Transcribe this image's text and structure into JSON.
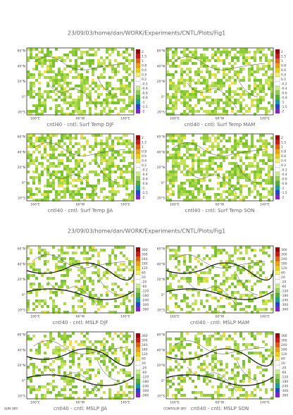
{
  "figures": [
    {
      "title": "23/09/03/home/dan/WORK/Experiments/CNTL/Plots/Fig1",
      "panels": [
        {
          "caption": "cntl40 - cntl: Surf Temp DJF",
          "lat_labels": [
            "60°N",
            "40°N",
            "20°N",
            "0°",
            "20°S"
          ],
          "lon_labels": [
            "160°E",
            "60°W",
            "140°E"
          ],
          "colorbar_labels": [
            "2",
            "1.5",
            "1",
            "0.8",
            "0.6",
            "0.4",
            "0.2",
            "-0.2",
            "-0.4",
            "-0.6",
            "-0.8",
            "-1",
            "-1.5",
            "-2"
          ]
        },
        {
          "caption": "cntl40 - cntl: Surf Temp MAM",
          "lat_labels": [
            "60°N",
            "40°N",
            "20°N",
            "0°",
            "20°S"
          ],
          "lon_labels": [
            "160°E",
            "60°W",
            "140°E"
          ],
          "colorbar_labels": [
            "2",
            "1.5",
            "1",
            "0.8",
            "0.6",
            "0.4",
            "0.2",
            "-0.2",
            "-0.4",
            "-0.6",
            "-0.8",
            "-1",
            "-1.5",
            "-2"
          ]
        },
        {
          "caption": "cntl40 - cntl: Surf Temp JJA",
          "lat_labels": [
            "60°N",
            "40°N",
            "20°N",
            "0°",
            "20°S"
          ],
          "lon_labels": [
            "160°E",
            "60°W",
            "140°E"
          ],
          "colorbar_labels": [
            "2",
            "1.5",
            "1",
            "0.8",
            "0.6",
            "0.4",
            "0.2",
            "-0.2",
            "-0.4",
            "-0.6",
            "-0.8",
            "-1",
            "-1.5",
            "-2"
          ]
        },
        {
          "caption": "cntl40 - cntl: Surf Temp SON",
          "lat_labels": [
            "60°N",
            "40°N",
            "20°N",
            "0°",
            "20°S"
          ],
          "lon_labels": [
            "160°E",
            "60°W",
            "140°E"
          ],
          "colorbar_labels": [
            "2",
            "1.5",
            "1",
            "0.8",
            "0.6",
            "0.4",
            "0.2",
            "-0.2",
            "-0.4",
            "-0.6",
            "-0.8",
            "-1",
            "-1.5",
            "-2"
          ]
        }
      ]
    },
    {
      "title": "23/09/03/home/dan/WORK/Experiments/CNTL/Plots/Fig1",
      "panels": [
        {
          "caption": "cntl40 - cntl: MSLP DJF",
          "lat_labels": [
            "60°N",
            "40°N",
            "20°N",
            "0°",
            "20°S"
          ],
          "lon_labels": [
            "160°E",
            "60°W",
            "140°E"
          ],
          "colorbar_labels": [
            "360",
            "300",
            "240",
            "180",
            "120",
            "60",
            "20",
            "-20",
            "-60",
            "-120",
            "-180",
            "-240",
            "-300",
            "-360"
          ]
        },
        {
          "caption": "cntl40 - cntl: MSLP MAM",
          "lat_labels": [
            "60°N",
            "40°N",
            "20°N",
            "0°",
            "20°S"
          ],
          "lon_labels": [
            "160°E",
            "60°W",
            "140°E"
          ],
          "colorbar_labels": [
            "360",
            "300",
            "240",
            "180",
            "120",
            "60",
            "20",
            "-20",
            "-60",
            "-120",
            "-180",
            "-240",
            "-300",
            "-360"
          ]
        },
        {
          "caption": "cntl40 - cntl: MSLP JJA",
          "lat_labels": [
            "60°N",
            "40°N",
            "20°N",
            "0°",
            "20°S"
          ],
          "lon_labels": [
            "160°E",
            "60°W",
            "140°E"
          ],
          "colorbar_labels": [
            "360",
            "300",
            "240",
            "180",
            "120",
            "60",
            "20",
            "-20",
            "-60",
            "-120",
            "-180",
            "-240",
            "-300",
            "-360"
          ]
        },
        {
          "caption": "cntl40 - cntl: MSLP SON",
          "lat_labels": [
            "60°N",
            "40°N",
            "20°N",
            "0°",
            "20°S"
          ],
          "lon_labels": [
            "160°E",
            "60°W",
            "140°E"
          ],
          "colorbar_labels": [
            "360",
            "300",
            "240",
            "180",
            "120",
            "60",
            "20",
            "-20",
            "-60",
            "-120",
            "-180",
            "-240",
            "-300",
            "-360"
          ]
        }
      ]
    }
  ],
  "footer": {
    "left": "SUN SRY",
    "center": "CONTOUR SRY"
  }
}
